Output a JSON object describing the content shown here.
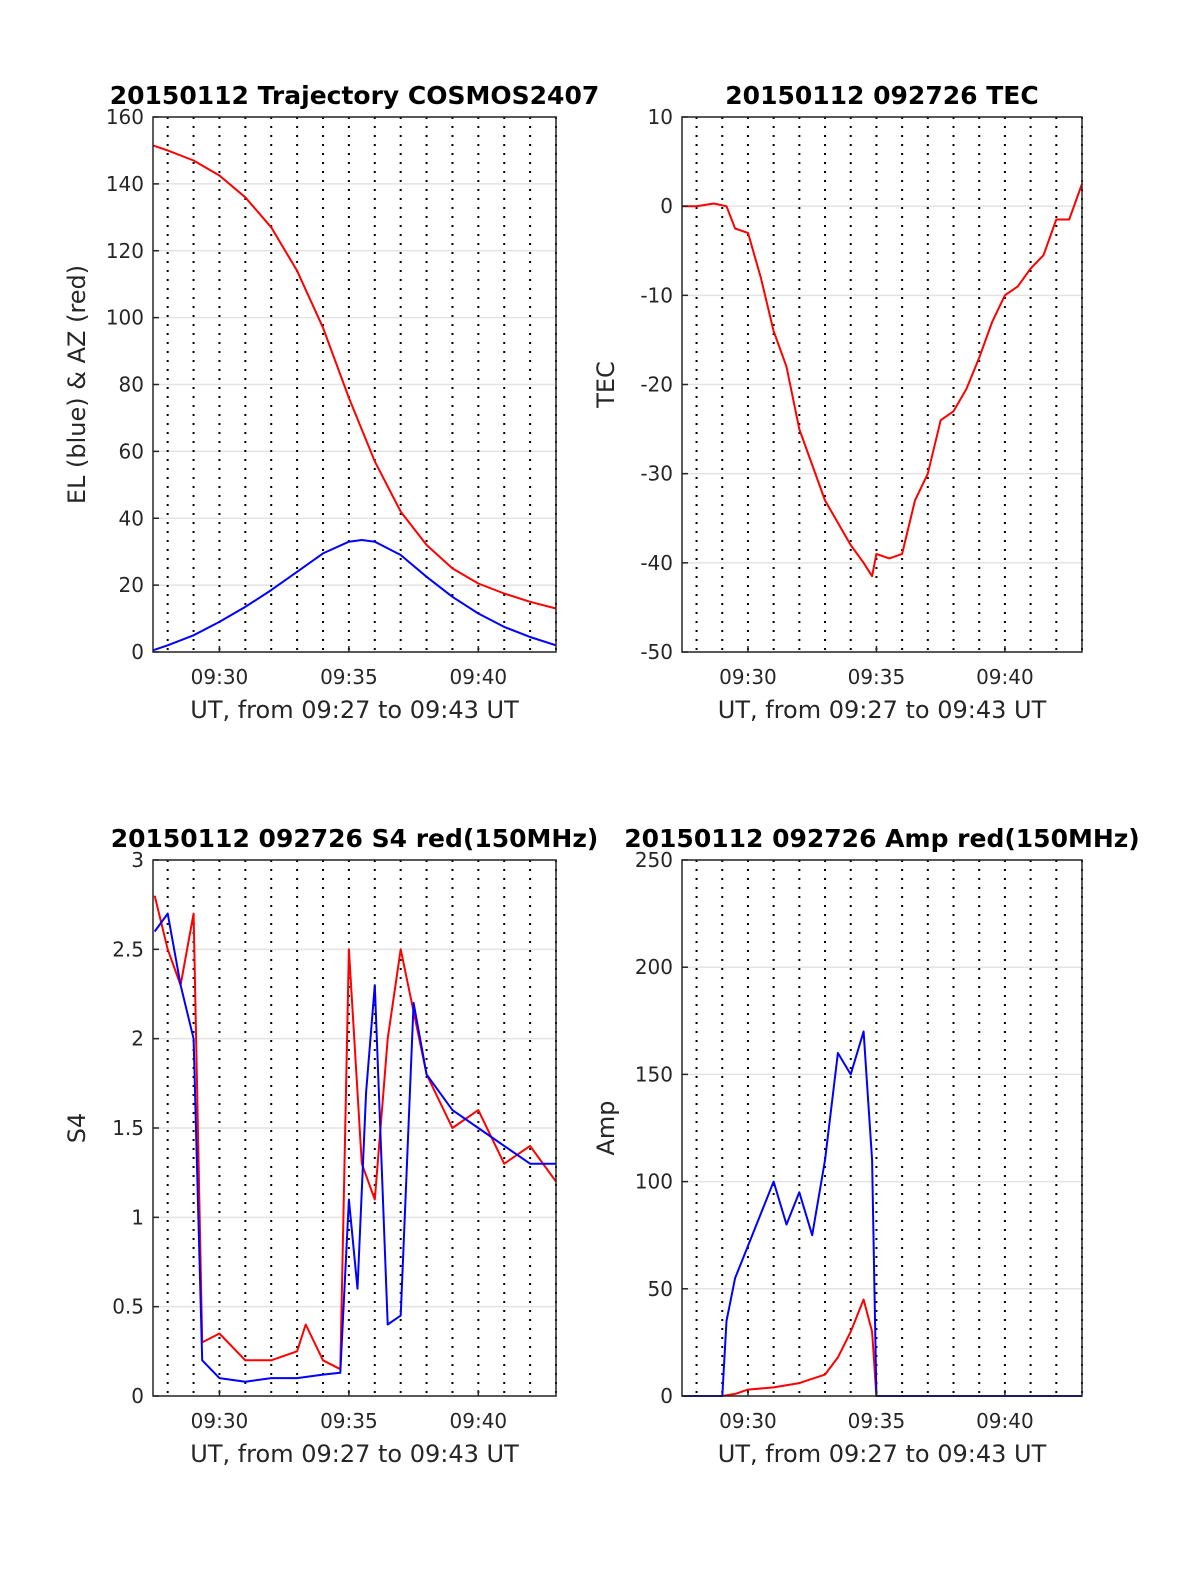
{
  "chart_data": [
    {
      "type": "line",
      "title": "20150112 Trajectory COSMOS2407",
      "xlabel": "UT, from 09:27 to 09:43 UT",
      "ylabel": "EL (blue) & AZ (red)",
      "xlim": [
        "09:27:26",
        "09:43:00"
      ],
      "ylim": [
        0,
        160
      ],
      "yticks": [
        0,
        20,
        40,
        60,
        80,
        100,
        120,
        140,
        160
      ],
      "xticks": [
        "09:30",
        "09:35",
        "09:40"
      ],
      "grid": true,
      "series": [
        {
          "color": "#ff0000",
          "x": [
            "09:27:26",
            "09:28:00",
            "09:29:00",
            "09:30:00",
            "09:31:00",
            "09:32:00",
            "09:33:00",
            "09:34:00",
            "09:35:00",
            "09:36:00",
            "09:37:00",
            "09:38:00",
            "09:39:00",
            "09:40:00",
            "09:41:00",
            "09:42:00",
            "09:43:00"
          ],
          "values": [
            151.5,
            150.0,
            147.0,
            142.5,
            136.0,
            127.0,
            114.0,
            97.0,
            76.0,
            57.0,
            42.0,
            32.0,
            25.0,
            20.5,
            17.5,
            15.0,
            13.0
          ]
        },
        {
          "color": "#0000ff",
          "x": [
            "09:27:26",
            "09:28:00",
            "09:29:00",
            "09:30:00",
            "09:31:00",
            "09:32:00",
            "09:33:00",
            "09:34:00",
            "09:35:00",
            "09:35:30",
            "09:36:00",
            "09:37:00",
            "09:38:00",
            "09:39:00",
            "09:40:00",
            "09:41:00",
            "09:42:00",
            "09:43:00"
          ],
          "values": [
            0.5,
            2.0,
            5.0,
            9.0,
            13.5,
            18.5,
            24.0,
            29.5,
            33.0,
            33.5,
            33.0,
            29.0,
            22.5,
            16.5,
            11.5,
            7.5,
            4.5,
            2.0
          ]
        }
      ]
    },
    {
      "type": "line",
      "title": "20150112 092726 TEC",
      "xlabel": "UT, from 09:27 to 09:43 UT",
      "ylabel": "TEC",
      "xlim": [
        "09:27:26",
        "09:43:00"
      ],
      "ylim": [
        -50,
        10
      ],
      "yticks": [
        -50,
        -40,
        -30,
        -20,
        -10,
        0,
        10
      ],
      "xticks": [
        "09:30",
        "09:35",
        "09:40"
      ],
      "grid": true,
      "series": [
        {
          "color": "#ff0000",
          "x": [
            "09:27:26",
            "09:28:00",
            "09:28:40",
            "09:29:10",
            "09:29:30",
            "09:30:00",
            "09:30:30",
            "09:31:00",
            "09:31:30",
            "09:32:00",
            "09:33:00",
            "09:34:00",
            "09:34:30",
            "09:34:50",
            "09:35:00",
            "09:35:30",
            "09:36:00",
            "09:36:30",
            "09:37:00",
            "09:37:30",
            "09:38:00",
            "09:38:30",
            "09:39:00",
            "09:39:30",
            "09:40:00",
            "09:40:30",
            "09:41:00",
            "09:41:30",
            "09:42:00",
            "09:42:30",
            "09:43:00"
          ],
          "values": [
            0.0,
            0.0,
            0.3,
            0.0,
            -2.5,
            -3.0,
            -8.0,
            -14.0,
            -18.0,
            -25.0,
            -33.0,
            -38.0,
            -40.0,
            -41.5,
            -39.0,
            -39.5,
            -39.0,
            -33.0,
            -30.0,
            -24.0,
            -23.0,
            -20.5,
            -17.0,
            -13.0,
            -10.0,
            -9.0,
            -7.0,
            -5.5,
            -1.5,
            -1.5,
            2.5
          ]
        }
      ]
    },
    {
      "type": "line",
      "title": "20150112 092726 S4 red(150MHz)",
      "xlabel": "UT, from 09:27 to 09:43 UT",
      "ylabel": "S4",
      "xlim": [
        "09:27:26",
        "09:43:00"
      ],
      "ylim": [
        0,
        3
      ],
      "yticks": [
        0,
        0.5,
        1,
        1.5,
        2,
        2.5,
        3
      ],
      "xticks": [
        "09:30",
        "09:35",
        "09:40"
      ],
      "grid": true,
      "series": [
        {
          "color": "#ff0000",
          "x": [
            "09:27:30",
            "09:28:00",
            "09:28:30",
            "09:29:00",
            "09:29:20",
            "09:30:00",
            "09:31:00",
            "09:32:00",
            "09:33:00",
            "09:33:20",
            "09:34:00",
            "09:34:40",
            "09:35:00",
            "09:35:30",
            "09:36:00",
            "09:36:30",
            "09:37:00",
            "09:38:00",
            "09:39:00",
            "09:40:00",
            "09:41:00",
            "09:42:00",
            "09:43:00"
          ],
          "values": [
            2.8,
            2.5,
            2.3,
            2.7,
            0.3,
            0.35,
            0.2,
            0.2,
            0.25,
            0.4,
            0.2,
            0.15,
            2.5,
            1.3,
            1.1,
            2.0,
            2.5,
            1.8,
            1.5,
            1.6,
            1.3,
            1.4,
            1.2
          ]
        },
        {
          "color": "#0000ff",
          "x": [
            "09:27:30",
            "09:28:00",
            "09:28:30",
            "09:29:00",
            "09:29:20",
            "09:30:00",
            "09:31:00",
            "09:32:00",
            "09:33:00",
            "09:34:00",
            "09:34:40",
            "09:35:00",
            "09:35:20",
            "09:35:40",
            "09:36:00",
            "09:36:30",
            "09:37:00",
            "09:37:30",
            "09:38:00",
            "09:39:00",
            "09:40:00",
            "09:41:00",
            "09:42:00",
            "09:43:00"
          ],
          "values": [
            2.6,
            2.7,
            2.3,
            2.0,
            0.2,
            0.1,
            0.08,
            0.1,
            0.1,
            0.12,
            0.13,
            1.1,
            0.6,
            1.7,
            2.3,
            0.4,
            0.45,
            2.2,
            1.8,
            1.6,
            1.5,
            1.4,
            1.3,
            1.3
          ]
        }
      ]
    },
    {
      "type": "line",
      "title": "20150112 092726 Amp red(150MHz)",
      "xlabel": "UT, from 09:27 to 09:43 UT",
      "ylabel": "Amp",
      "xlim": [
        "09:27:26",
        "09:43:00"
      ],
      "ylim": [
        0,
        250
      ],
      "yticks": [
        0,
        50,
        100,
        150,
        200,
        250
      ],
      "xticks": [
        "09:30",
        "09:35",
        "09:40"
      ],
      "grid": true,
      "series": [
        {
          "color": "#ff0000",
          "x": [
            "09:27:26",
            "09:29:00",
            "09:29:30",
            "09:30:00",
            "09:31:00",
            "09:32:00",
            "09:33:00",
            "09:33:30",
            "09:34:00",
            "09:34:30",
            "09:34:50",
            "09:35:00",
            "09:36:00",
            "09:43:00"
          ],
          "values": [
            0,
            0,
            1,
            3,
            4,
            6,
            10,
            18,
            30,
            45,
            30,
            0,
            0,
            0
          ]
        },
        {
          "color": "#0000ff",
          "x": [
            "09:27:26",
            "09:29:00",
            "09:29:10",
            "09:29:30",
            "09:30:00",
            "09:30:30",
            "09:31:00",
            "09:31:30",
            "09:32:00",
            "09:32:30",
            "09:33:00",
            "09:33:30",
            "09:34:00",
            "09:34:30",
            "09:34:50",
            "09:35:00",
            "09:36:00",
            "09:43:00"
          ],
          "values": [
            0,
            0,
            35,
            55,
            70,
            85,
            100,
            80,
            95,
            75,
            110,
            160,
            150,
            170,
            110,
            0,
            0,
            0
          ]
        }
      ]
    }
  ]
}
